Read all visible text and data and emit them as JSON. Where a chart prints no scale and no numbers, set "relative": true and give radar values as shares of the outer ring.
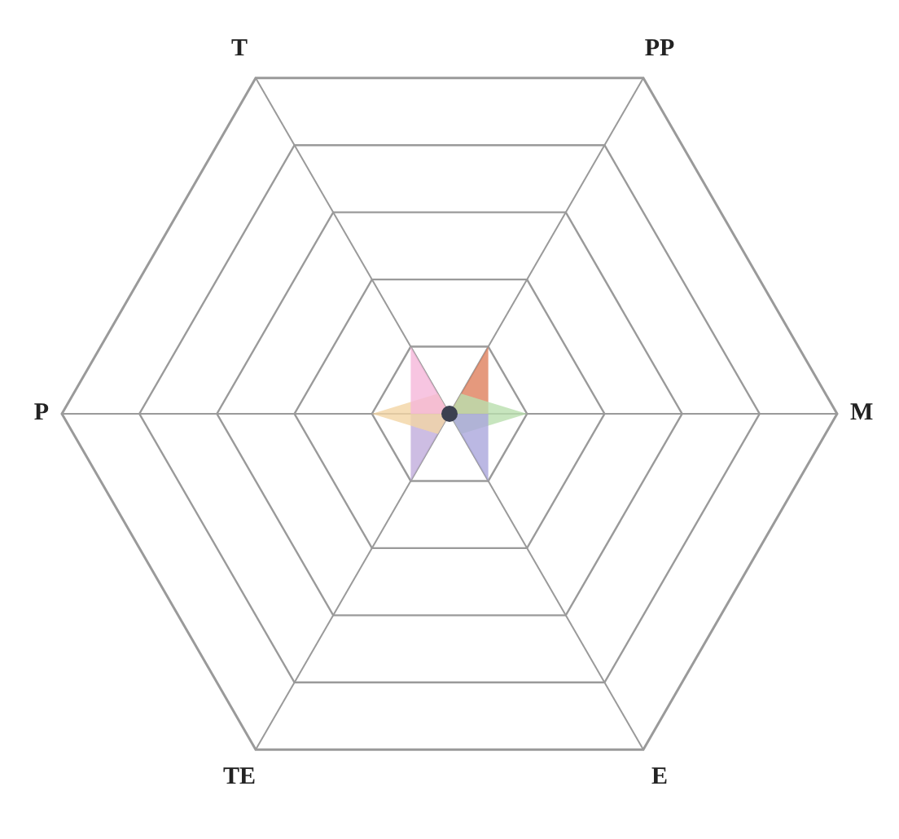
{
  "chart_data": {
    "type": "radar",
    "relative": true,
    "categories": [
      "PP",
      "M",
      "E",
      "TE",
      "P",
      "T"
    ],
    "series": [
      {
        "color": "#df7f5c",
        "values": [
          0.2,
          0.1,
          0,
          0,
          0,
          0
        ]
      },
      {
        "color": "#b9dfae",
        "values": [
          0.06,
          0.2,
          0.06,
          0,
          0,
          0
        ]
      },
      {
        "color": "#aaa6dc",
        "values": [
          0,
          0.1,
          0.2,
          0,
          0,
          0
        ]
      },
      {
        "color": "#c0addc",
        "values": [
          0,
          0,
          0,
          0.2,
          0.1,
          0
        ]
      },
      {
        "color": "#f2d4a4",
        "values": [
          0,
          0,
          0,
          0.06,
          0.2,
          0.06
        ]
      },
      {
        "color": "#f5b7d9",
        "values": [
          0,
          0,
          0,
          0,
          0.1,
          0.2
        ]
      }
    ],
    "grid": true
  }
}
